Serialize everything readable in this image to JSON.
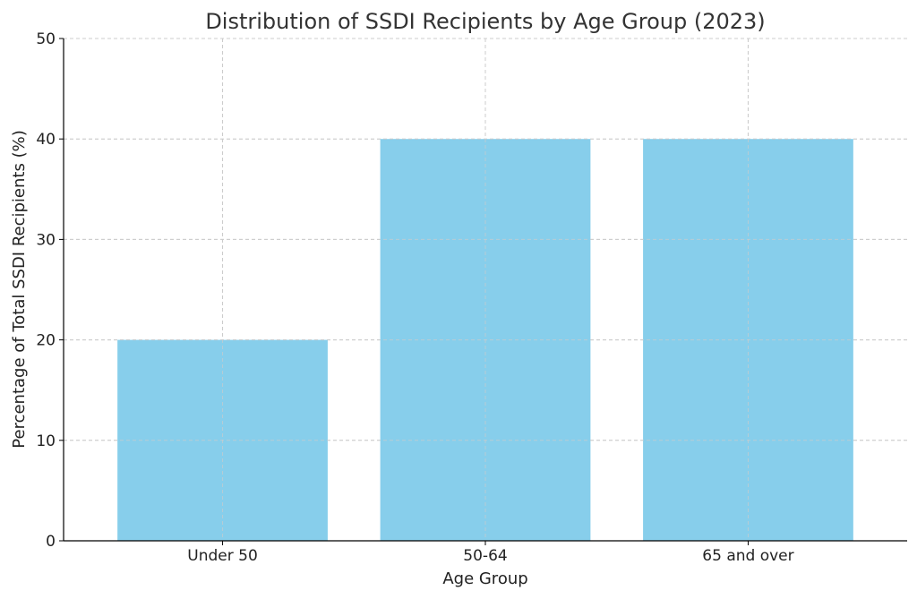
{
  "chart_data": {
    "type": "bar",
    "title": "Distribution of SSDI Recipients by Age Group (2023)",
    "xlabel": "Age Group",
    "ylabel": "Percentage of Total SSDI Recipients (%)",
    "categories": [
      "Under 50",
      "50-64",
      "65 and over"
    ],
    "values": [
      20,
      40,
      40
    ],
    "ylim": [
      0,
      50
    ],
    "yticks": [
      0,
      10,
      20,
      30,
      40,
      50
    ],
    "grid": true,
    "bar_color": "#87ceeb"
  }
}
